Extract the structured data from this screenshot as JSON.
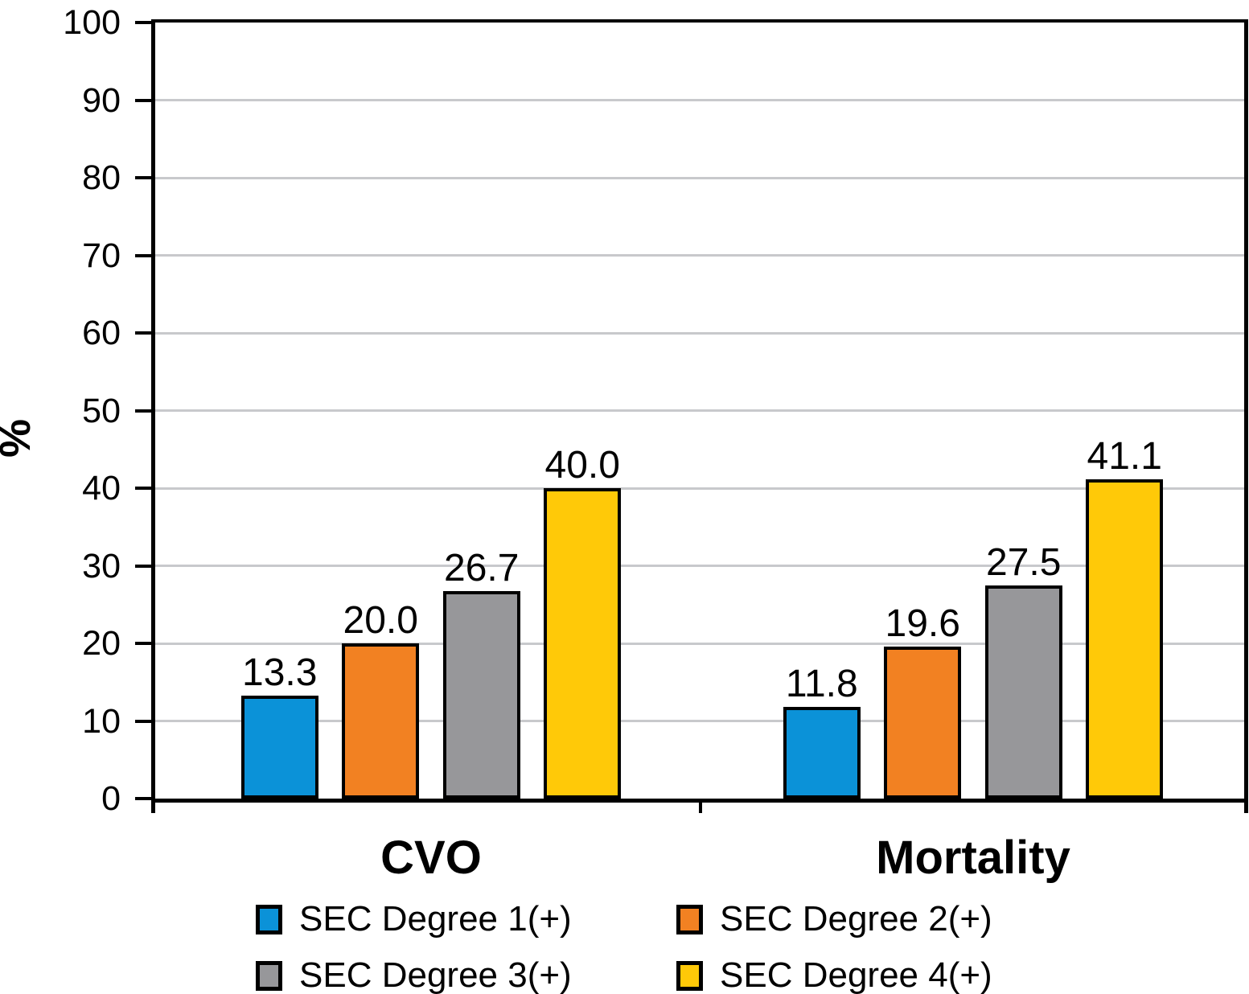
{
  "colors": {
    "axis": "#000000",
    "grid": "#c8c9cc",
    "background": "#ffffff",
    "text": "#000000"
  },
  "chart_data": {
    "type": "bar",
    "title": "",
    "xlabel": "",
    "ylabel": "%",
    "ylim": [
      0,
      100
    ],
    "yticks": [
      0,
      10,
      20,
      30,
      40,
      50,
      60,
      70,
      80,
      90,
      100
    ],
    "grid": true,
    "legend_position": "bottom",
    "categories": [
      "CVO",
      "Mortality"
    ],
    "series": [
      {
        "name": "SEC Degree 1(+)",
        "color": "#0b92d8",
        "values": [
          13.3,
          11.8
        ],
        "labels": [
          "13.3",
          "11.8"
        ]
      },
      {
        "name": "SEC Degree 2(+)",
        "color": "#f28122",
        "values": [
          20.0,
          19.6
        ],
        "labels": [
          "20.0",
          "19.6"
        ]
      },
      {
        "name": "SEC Degree 3(+)",
        "color": "#97979a",
        "values": [
          26.7,
          27.5
        ],
        "labels": [
          "26.7",
          "27.5"
        ]
      },
      {
        "name": "SEC Degree 4(+)",
        "color": "#ffc908",
        "values": [
          40.0,
          41.1
        ],
        "labels": [
          "40.0",
          "41.1"
        ]
      }
    ]
  }
}
